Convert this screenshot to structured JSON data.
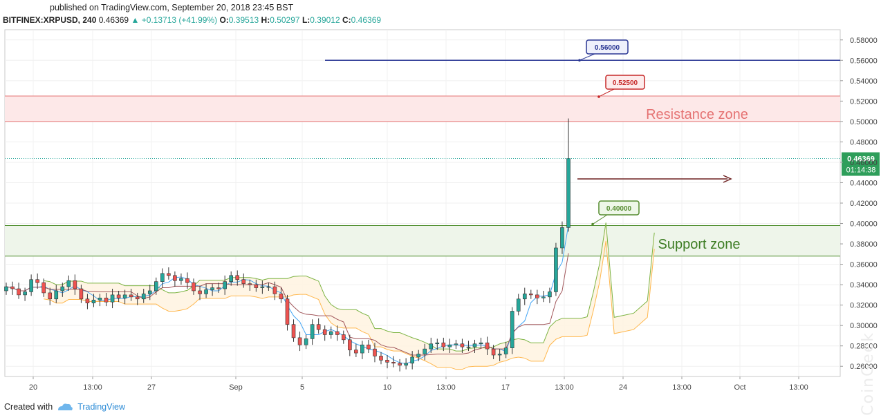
{
  "header": {
    "published": "published on TradingView.com, September 20, 2018 23:45 BST",
    "symbol": "BITFINEX:XRPUSD, 240",
    "last": "0.46369",
    "change": "+0.13713 (+41.99%)",
    "open_label": "O:",
    "open": "0.39513",
    "high_label": "H:",
    "high": "0.50297",
    "low_label": "L:",
    "low": "0.39012",
    "close_label": "C:",
    "close": "0.46369"
  },
  "footer": {
    "created_with": "Created with",
    "brand": "TradingView"
  },
  "chart_data": {
    "type": "candlestick",
    "y_range": [
      0.25,
      0.59
    ],
    "y_ticks": [
      "0.26000",
      "0.28000",
      "0.30000",
      "0.32000",
      "0.34000",
      "0.36000",
      "0.38000",
      "0.40000",
      "0.42000",
      "0.44000",
      "0.46000",
      "0.48000",
      "0.50000",
      "0.52000",
      "0.54000",
      "0.56000",
      "0.58000"
    ],
    "x_ticks": [
      "20",
      "13:00",
      "27",
      "Sep",
      "5",
      "10",
      "13:00",
      "17",
      "13:00",
      "24",
      "13:00",
      "Oct",
      "13:00"
    ],
    "price_label": "0.46369",
    "countdown": "01:14:38",
    "resistance_zone": {
      "label": "Resistance zone",
      "from": 0.5,
      "to": 0.525,
      "color": "#e57373"
    },
    "support_zone": {
      "label": "Support zone",
      "from": 0.368,
      "to": 0.398,
      "color": "#4c8c2b"
    },
    "level_lines": [
      {
        "label": "0.56000",
        "value": 0.56,
        "color": "#283593"
      },
      {
        "label": "0.52500",
        "value": 0.525,
        "color": "#c62828"
      },
      {
        "label": "0.40000",
        "value": 0.4,
        "color": "#558b2f"
      }
    ],
    "price_series": [
      0.338,
      0.336,
      0.33,
      0.333,
      0.345,
      0.342,
      0.332,
      0.326,
      0.334,
      0.338,
      0.344,
      0.336,
      0.326,
      0.322,
      0.325,
      0.327,
      0.323,
      0.33,
      0.327,
      0.33,
      0.328,
      0.326,
      0.331,
      0.334,
      0.343,
      0.351,
      0.349,
      0.344,
      0.346,
      0.342,
      0.334,
      0.331,
      0.335,
      0.337,
      0.336,
      0.343,
      0.349,
      0.345,
      0.341,
      0.34,
      0.337,
      0.338,
      0.338,
      0.331,
      0.326,
      0.301,
      0.288,
      0.281,
      0.287,
      0.301,
      0.296,
      0.291,
      0.294,
      0.291,
      0.286,
      0.276,
      0.273,
      0.281,
      0.277,
      0.27,
      0.266,
      0.264,
      0.263,
      0.261,
      0.263,
      0.269,
      0.272,
      0.277,
      0.282,
      0.283,
      0.279,
      0.281,
      0.282,
      0.279,
      0.279,
      0.282,
      0.283,
      0.277,
      0.271,
      0.272,
      0.278,
      0.314,
      0.326,
      0.331,
      0.33,
      0.327,
      0.328,
      0.333,
      0.376,
      0.396,
      0.46369
    ]
  }
}
